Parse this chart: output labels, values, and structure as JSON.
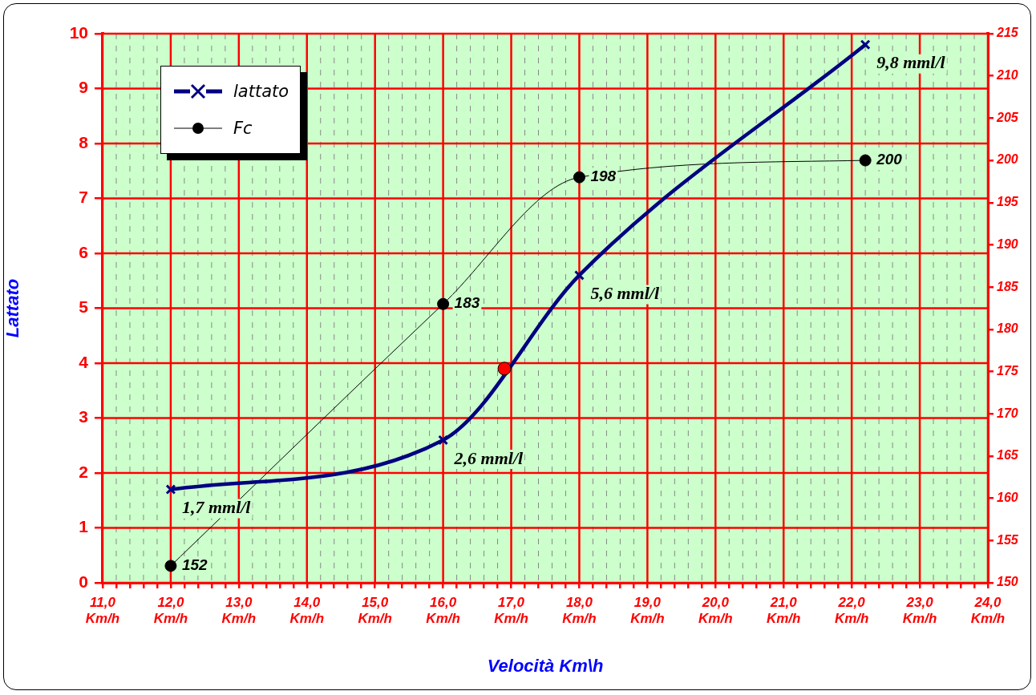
{
  "chart_data": {
    "type": "line",
    "xlabel": "Velocità Km\\h",
    "ylabel": "Lattato",
    "series": [
      {
        "name": "lattato",
        "type": "line",
        "color": "#000080",
        "marker": "cross",
        "x": [
          12,
          16,
          18,
          22.2
        ],
        "values": [
          1.7,
          2.6,
          5.6,
          9.8
        ],
        "value_labels": [
          "1,7 mml/l",
          "2,6 mml/l",
          "5,6 mml/l",
          "9,8 mml/l"
        ]
      },
      {
        "name": "Fc",
        "type": "line",
        "color": "#000000",
        "marker": "circle",
        "axis": "y2",
        "x": [
          12,
          16,
          18,
          22.2
        ],
        "values": [
          152,
          183,
          198,
          200
        ],
        "value_labels": [
          "152",
          "183",
          "198",
          "200"
        ]
      },
      {
        "type": "scatter",
        "color": "#ff0000",
        "marker": "circle",
        "x": [
          16.9
        ],
        "values": [
          3.9
        ]
      }
    ],
    "xlim": [
      11,
      24
    ],
    "xticks": [
      {
        "value": 11,
        "label": "11,0 Km/h"
      },
      {
        "value": 11.2,
        "label": null
      },
      {
        "value": 11.4,
        "label": null
      },
      {
        "value": 11.6,
        "label": null
      },
      {
        "value": 11.8,
        "label": null
      },
      {
        "value": 12,
        "label": "12,0 Km/h"
      },
      {
        "value": 12.2,
        "label": null
      },
      {
        "value": 12.4,
        "label": null
      },
      {
        "value": 12.6,
        "label": null
      },
      {
        "value": 12.8,
        "label": null
      },
      {
        "value": 13,
        "label": "13,0 Km/h"
      },
      {
        "value": 13.2,
        "label": null
      },
      {
        "value": 13.4,
        "label": null
      },
      {
        "value": 13.6,
        "label": null
      },
      {
        "value": 13.8,
        "label": null
      },
      {
        "value": 14,
        "label": "14,0 Km/h"
      },
      {
        "value": 14.2,
        "label": null
      },
      {
        "value": 14.4,
        "label": null
      },
      {
        "value": 14.6,
        "label": null
      },
      {
        "value": 14.8,
        "label": null
      },
      {
        "value": 15,
        "label": "15,0 Km/h"
      },
      {
        "value": 15.2,
        "label": null
      },
      {
        "value": 15.4,
        "label": null
      },
      {
        "value": 15.6,
        "label": null
      },
      {
        "value": 15.8,
        "label": null
      },
      {
        "value": 16,
        "label": "16,0 Km/h"
      },
      {
        "value": 16.2,
        "label": null
      },
      {
        "value": 16.4,
        "label": null
      },
      {
        "value": 16.6,
        "label": null
      },
      {
        "value": 16.8,
        "label": null
      },
      {
        "value": 17,
        "label": "17,0 Km/h"
      },
      {
        "value": 17.2,
        "label": null
      },
      {
        "value": 17.4,
        "label": null
      },
      {
        "value": 17.6,
        "label": null
      },
      {
        "value": 17.8,
        "label": null
      },
      {
        "value": 18,
        "label": "18,0 Km/h"
      },
      {
        "value": 18.2,
        "label": null
      },
      {
        "value": 18.4,
        "label": null
      },
      {
        "value": 18.6,
        "label": null
      },
      {
        "value": 18.8,
        "label": null
      },
      {
        "value": 19,
        "label": "19,0 Km/h"
      },
      {
        "value": 19.2,
        "label": null
      },
      {
        "value": 19.4,
        "label": null
      },
      {
        "value": 19.6,
        "label": null
      },
      {
        "value": 19.8,
        "label": null
      },
      {
        "value": 20,
        "label": "20,0 Km/h"
      },
      {
        "value": 20.2,
        "label": null
      },
      {
        "value": 20.4,
        "label": null
      },
      {
        "value": 20.6,
        "label": null
      },
      {
        "value": 20.8,
        "label": null
      },
      {
        "value": 21,
        "label": "21,0 Km/h"
      },
      {
        "value": 21.2,
        "label": null
      },
      {
        "value": 21.4,
        "label": null
      },
      {
        "value": 21.6,
        "label": null
      },
      {
        "value": 21.8,
        "label": null
      },
      {
        "value": 22,
        "label": "22,0 Km/h"
      },
      {
        "value": 22.2,
        "label": null
      },
      {
        "value": 22.4,
        "label": null
      },
      {
        "value": 22.6,
        "label": null
      },
      {
        "value": 22.8,
        "label": null
      },
      {
        "value": 23,
        "label": "23,0 Km/h"
      },
      {
        "value": 23.2,
        "label": null
      },
      {
        "value": 23.4,
        "label": null
      },
      {
        "value": 23.6,
        "label": null
      },
      {
        "value": 23.8,
        "label": null
      },
      {
        "value": 24,
        "label": "24,0 Km/h"
      }
    ],
    "ylim": [
      0,
      10
    ],
    "yticks": [
      0,
      1,
      2,
      3,
      4,
      5,
      6,
      7,
      8,
      9,
      10
    ],
    "y2lim": [
      150,
      215
    ],
    "y2ticks": [
      150,
      155,
      160,
      165,
      170,
      175,
      180,
      185,
      190,
      195,
      200,
      205,
      210,
      215
    ],
    "grid": true,
    "legend": "top left"
  }
}
